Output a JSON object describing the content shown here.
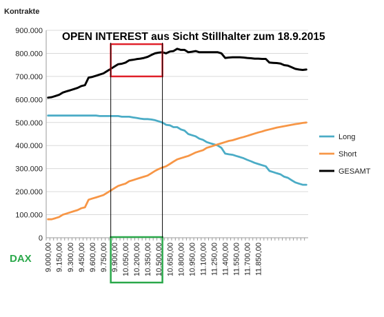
{
  "chart_data": {
    "type": "line",
    "title": "OPEN INTEREST aus Sicht Stillhalter zum 18.9.2015",
    "ylabel": "Kontrakte",
    "xlabel": "DAX",
    "ylim": [
      0,
      900000
    ],
    "yticks": [
      0,
      100000,
      200000,
      300000,
      400000,
      500000,
      600000,
      700000,
      800000,
      900000
    ],
    "ytick_labels": [
      "0",
      "100.000",
      "200.000",
      "300.000",
      "400.000",
      "500.000",
      "600.000",
      "700.000",
      "800.000",
      "900.000"
    ],
    "x_start": 9000,
    "x_step": 50,
    "x_ticks": [
      9000,
      9150,
      9300,
      9450,
      9600,
      9750,
      9900,
      10050,
      10200,
      10350,
      10500,
      10650,
      10800,
      10950,
      11100,
      11250,
      11400,
      11550,
      11700,
      11850
    ],
    "x_tick_labels": [
      "9.000,00",
      "9.150,00",
      "9.300,00",
      "9.450,00",
      "9.600,00",
      "9.750,00",
      "9.900,00",
      "10.050,00",
      "10.200,00",
      "10.350,00",
      "10.500,00",
      "10.650,00",
      "10.800,00",
      "10.950,00",
      "11.100,00",
      "11.250,00",
      "11.400,00",
      "11.550,00",
      "11.700,00",
      "11.850,00"
    ],
    "grid": "horizontal",
    "legend_position": "right",
    "series": [
      {
        "name": "Long",
        "color": "#4bacc6",
        "values": [
          530000,
          530000,
          530000,
          530000,
          530000,
          530000,
          530000,
          530000,
          530000,
          530000,
          530000,
          530000,
          530000,
          530000,
          528000,
          528000,
          528000,
          528000,
          528000,
          528000,
          525000,
          525000,
          525000,
          522000,
          520000,
          517000,
          515000,
          515000,
          513000,
          510000,
          505000,
          500000,
          490000,
          488000,
          480000,
          480000,
          470000,
          465000,
          450000,
          445000,
          440000,
          430000,
          425000,
          415000,
          410000,
          405000,
          400000,
          390000,
          365000,
          362000,
          360000,
          355000,
          350000,
          345000,
          338000,
          332000,
          325000,
          320000,
          315000,
          310000,
          290000,
          285000,
          280000,
          275000,
          265000,
          260000,
          250000,
          240000,
          235000,
          230000,
          230000
        ]
      },
      {
        "name": "Short",
        "color": "#f79646",
        "values": [
          80000,
          80000,
          85000,
          90000,
          100000,
          105000,
          110000,
          115000,
          120000,
          128000,
          132000,
          165000,
          170000,
          175000,
          180000,
          185000,
          195000,
          205000,
          215000,
          225000,
          230000,
          235000,
          245000,
          250000,
          255000,
          260000,
          265000,
          270000,
          280000,
          290000,
          298000,
          305000,
          310000,
          320000,
          330000,
          340000,
          345000,
          350000,
          355000,
          362000,
          370000,
          375000,
          380000,
          390000,
          395000,
          400000,
          405000,
          410000,
          415000,
          420000,
          423000,
          428000,
          433000,
          437000,
          442000,
          447000,
          452000,
          457000,
          461000,
          466000,
          470000,
          474000,
          478000,
          481000,
          484000,
          487000,
          490000,
          493000,
          495000,
          498000,
          500000
        ]
      },
      {
        "name": "GESAMT",
        "color": "#000000",
        "values": [
          608000,
          610000,
          615000,
          620000,
          630000,
          635000,
          640000,
          645000,
          650000,
          658000,
          662000,
          695000,
          698000,
          703000,
          708000,
          713000,
          723000,
          733000,
          743000,
          753000,
          755000,
          760000,
          770000,
          772000,
          775000,
          777000,
          780000,
          785000,
          793000,
          800000,
          803000,
          805000,
          800000,
          808000,
          810000,
          820000,
          815000,
          815000,
          805000,
          807000,
          810000,
          805000,
          805000,
          805000,
          805000,
          805000,
          805000,
          800000,
          780000,
          782000,
          783000,
          783000,
          783000,
          782000,
          780000,
          779000,
          777000,
          777000,
          776000,
          776000,
          760000,
          759000,
          758000,
          756000,
          749000,
          747000,
          740000,
          733000,
          730000,
          728000,
          730000
        ]
      }
    ],
    "highlights": [
      {
        "type": "box",
        "color": "#e0202a",
        "x_from": 9850,
        "x_to": 10550,
        "y_from": 700000,
        "y_to": 840000
      },
      {
        "type": "box",
        "color": "#2aa84a",
        "x_from": 9850,
        "x_to": 10550,
        "y_from": 0,
        "y_to": 0,
        "on_x_labels": true
      },
      {
        "type": "vline",
        "color": "#000000",
        "x": 9850
      },
      {
        "type": "vline",
        "color": "#000000",
        "x": 10550
      }
    ]
  }
}
